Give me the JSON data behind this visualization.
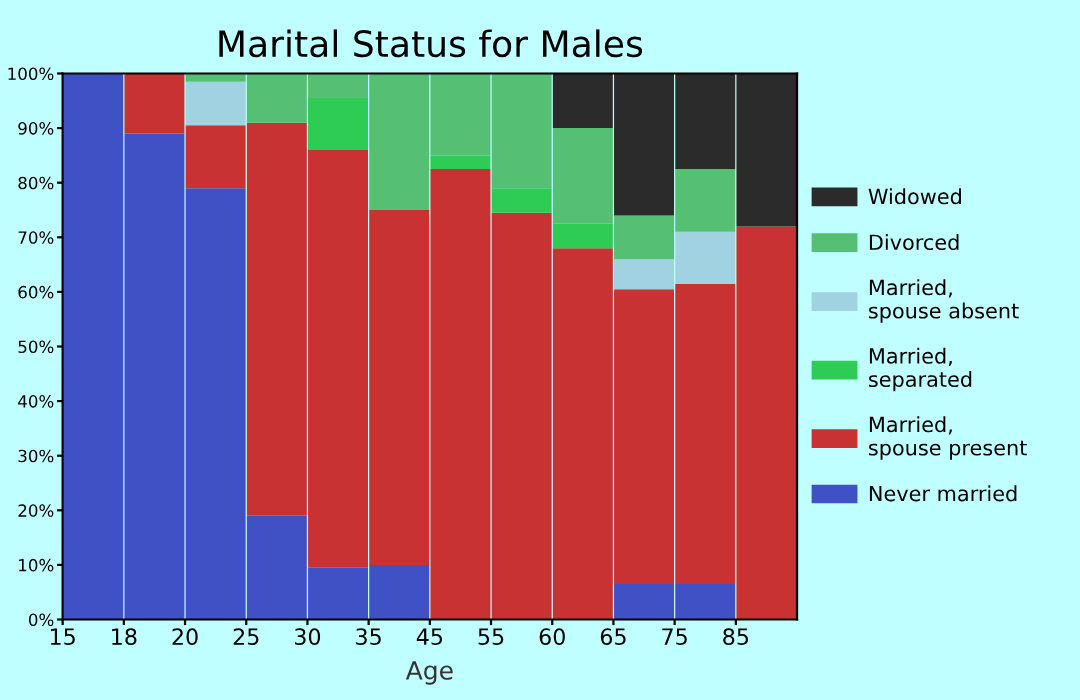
{
  "chart_data": {
    "type": "bar",
    "title": "Marital Status for Males",
    "xlabel": "Age",
    "stacked": true,
    "legend": "right",
    "grid": false,
    "categories": [
      "15",
      "18",
      "20",
      "25",
      "30",
      "35",
      "45",
      "55",
      "60",
      "65",
      "75",
      "85"
    ],
    "ylim": [
      0,
      100
    ],
    "yticks": [
      {
        "value": 0,
        "label": "0%"
      },
      {
        "value": 10,
        "label": "10%"
      },
      {
        "value": 20,
        "label": "20%"
      },
      {
        "value": 30,
        "label": "30%"
      },
      {
        "value": 40,
        "label": "40%"
      },
      {
        "value": 50,
        "label": "50%"
      },
      {
        "value": 60,
        "label": "60%"
      },
      {
        "value": 70,
        "label": "70%"
      },
      {
        "value": 80,
        "label": "80%"
      },
      {
        "value": 90,
        "label": "90%"
      },
      {
        "value": 100,
        "label": "100%"
      }
    ],
    "series": [
      {
        "name": "Never married",
        "color": "#3f51c4",
        "values": [
          100,
          89,
          79,
          19,
          9.5,
          10,
          0,
          0,
          0,
          6.5,
          6.5,
          0
        ]
      },
      {
        "name": "Married, spouse present",
        "color": "#c83232",
        "values": [
          0,
          11,
          11.5,
          72,
          76.5,
          65,
          82.5,
          74.5,
          68,
          54,
          55,
          72
        ]
      },
      {
        "name": "Married, separated",
        "color": "#2ecc55",
        "values": [
          0,
          0,
          0,
          0,
          9.5,
          0,
          2.5,
          4.5,
          4.5,
          0,
          0,
          0
        ]
      },
      {
        "name": "Married, spouse absent",
        "color": "#a0d2e2",
        "values": [
          0,
          0,
          8,
          0,
          0,
          0,
          0,
          0,
          0,
          5.5,
          9.5,
          0
        ]
      },
      {
        "name": "Divorced",
        "color": "#55c073",
        "values": [
          0,
          0,
          1.5,
          9,
          4.5,
          25,
          15,
          21,
          17.5,
          8,
          11.5,
          0
        ]
      },
      {
        "name": "Widowed",
        "color": "#2b2b2b",
        "values": [
          0,
          0,
          0,
          0,
          0,
          0,
          0,
          0,
          10,
          26,
          17.5,
          28
        ]
      }
    ]
  }
}
